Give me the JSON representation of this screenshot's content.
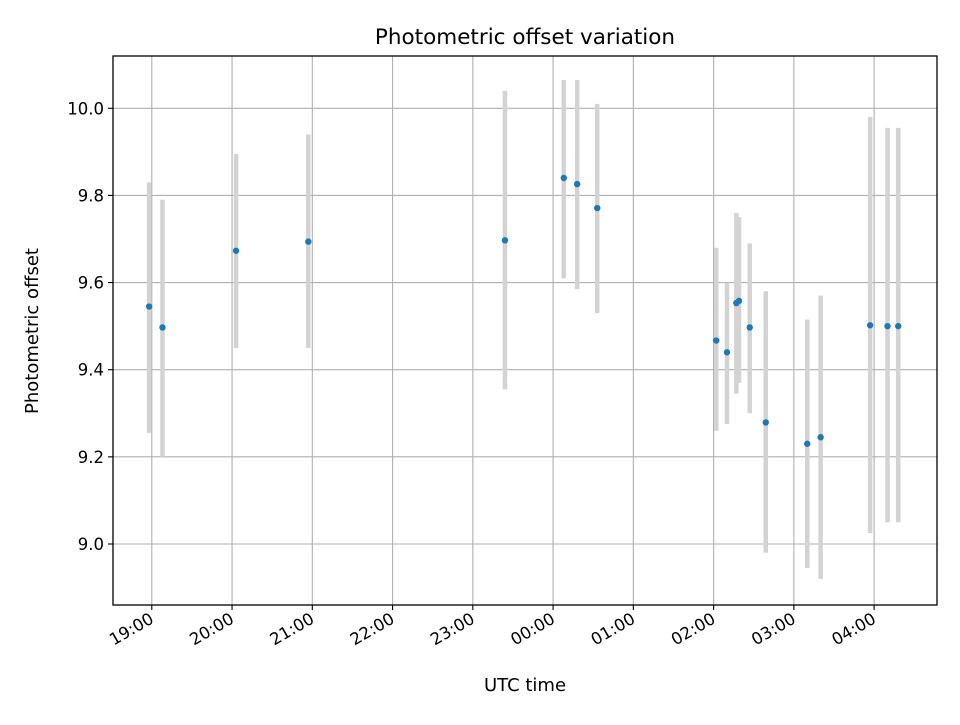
{
  "chart_data": {
    "type": "scatter",
    "title": "Photometric offset variation",
    "xlabel": "UTC time",
    "ylabel": "Photometric offset",
    "x_ticks": [
      {
        "label": "19:00",
        "value": 0
      },
      {
        "label": "20:00",
        "value": 60
      },
      {
        "label": "21:00",
        "value": 120
      },
      {
        "label": "22:00",
        "value": 180
      },
      {
        "label": "23:00",
        "value": 240
      },
      {
        "label": "00:00",
        "value": 300
      },
      {
        "label": "01:00",
        "value": 360
      },
      {
        "label": "02:00",
        "value": 420
      },
      {
        "label": "03:00",
        "value": 480
      },
      {
        "label": "04:00",
        "value": 540
      }
    ],
    "y_ticks": [
      {
        "label": "9.0",
        "value": 9.0
      },
      {
        "label": "9.2",
        "value": 9.2
      },
      {
        "label": "9.4",
        "value": 9.4
      },
      {
        "label": "9.6",
        "value": 9.6
      },
      {
        "label": "9.8",
        "value": 9.8
      },
      {
        "label": "10.0",
        "value": 10.0
      }
    ],
    "xlim": [
      -29,
      587
    ],
    "ylim": [
      8.86,
      10.12
    ],
    "grid": true,
    "point_color": "#1f77b4",
    "errorbar_color": "#d3d3d3",
    "points": [
      {
        "x": -2,
        "y": 9.545,
        "err_low": 9.255,
        "err_high": 9.83
      },
      {
        "x": 8,
        "y": 9.497,
        "err_low": 9.2,
        "err_high": 9.79
      },
      {
        "x": 63,
        "y": 9.673,
        "err_low": 9.45,
        "err_high": 9.895
      },
      {
        "x": 117,
        "y": 9.694,
        "err_low": 9.45,
        "err_high": 9.94
      },
      {
        "x": 264,
        "y": 9.697,
        "err_low": 9.355,
        "err_high": 10.04
      },
      {
        "x": 308,
        "y": 9.84,
        "err_low": 9.61,
        "err_high": 10.065
      },
      {
        "x": 318,
        "y": 9.826,
        "err_low": 9.585,
        "err_high": 10.065
      },
      {
        "x": 333,
        "y": 9.771,
        "err_low": 9.53,
        "err_high": 10.01
      },
      {
        "x": 422,
        "y": 9.467,
        "err_low": 9.26,
        "err_high": 9.68
      },
      {
        "x": 430,
        "y": 9.44,
        "err_low": 9.275,
        "err_high": 9.6
      },
      {
        "x": 437,
        "y": 9.553,
        "err_low": 9.345,
        "err_high": 9.76
      },
      {
        "x": 439,
        "y": 9.558,
        "err_low": 9.37,
        "err_high": 9.75
      },
      {
        "x": 447,
        "y": 9.497,
        "err_low": 9.3,
        "err_high": 9.69
      },
      {
        "x": 459,
        "y": 9.279,
        "err_low": 8.98,
        "err_high": 9.58
      },
      {
        "x": 490,
        "y": 9.23,
        "err_low": 8.945,
        "err_high": 9.515
      },
      {
        "x": 500,
        "y": 9.245,
        "err_low": 8.92,
        "err_high": 9.57
      },
      {
        "x": 537,
        "y": 9.502,
        "err_low": 9.025,
        "err_high": 9.98
      },
      {
        "x": 550,
        "y": 9.5,
        "err_low": 9.05,
        "err_high": 9.955
      },
      {
        "x": 558,
        "y": 9.5,
        "err_low": 9.05,
        "err_high": 9.955
      }
    ]
  }
}
